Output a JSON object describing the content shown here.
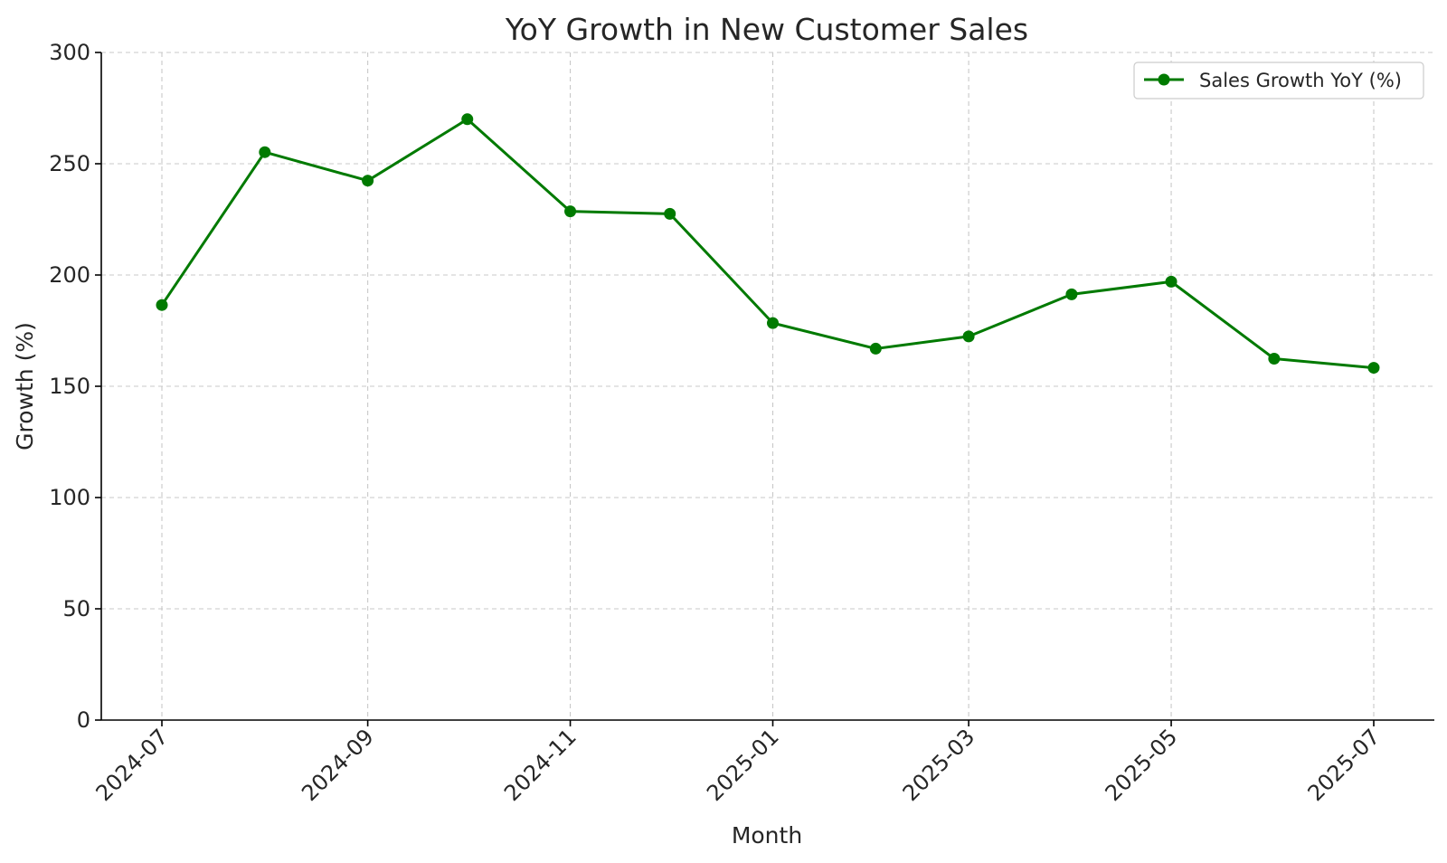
{
  "chart_data": {
    "type": "line",
    "title": "YoY Growth in New Customer Sales",
    "xlabel": "Month",
    "ylabel": "Growth (%)",
    "ylim": [
      0,
      300
    ],
    "yticks": [
      0,
      50,
      100,
      150,
      200,
      250,
      300
    ],
    "xticks": [
      "2024-07",
      "2024-09",
      "2024-11",
      "2025-01",
      "2025-03",
      "2025-05",
      "2025-07"
    ],
    "grid": true,
    "legend_position": "top-right",
    "x": [
      "2024-07-01",
      "2024-08-01",
      "2024-09-01",
      "2024-10-01",
      "2024-11-01",
      "2024-12-01",
      "2025-01-01",
      "2025-02-01",
      "2025-03-01",
      "2025-04-01",
      "2025-05-01",
      "2025-06-01",
      "2025-07-01"
    ],
    "series": [
      {
        "name": "Sales Growth YoY (%)",
        "color": "#007a00",
        "marker": "circle",
        "values": [
          186.5,
          255.2,
          242.4,
          270.0,
          228.6,
          227.5,
          178.4,
          166.9,
          172.4,
          191.3,
          197.0,
          162.4,
          158.3
        ]
      }
    ]
  }
}
